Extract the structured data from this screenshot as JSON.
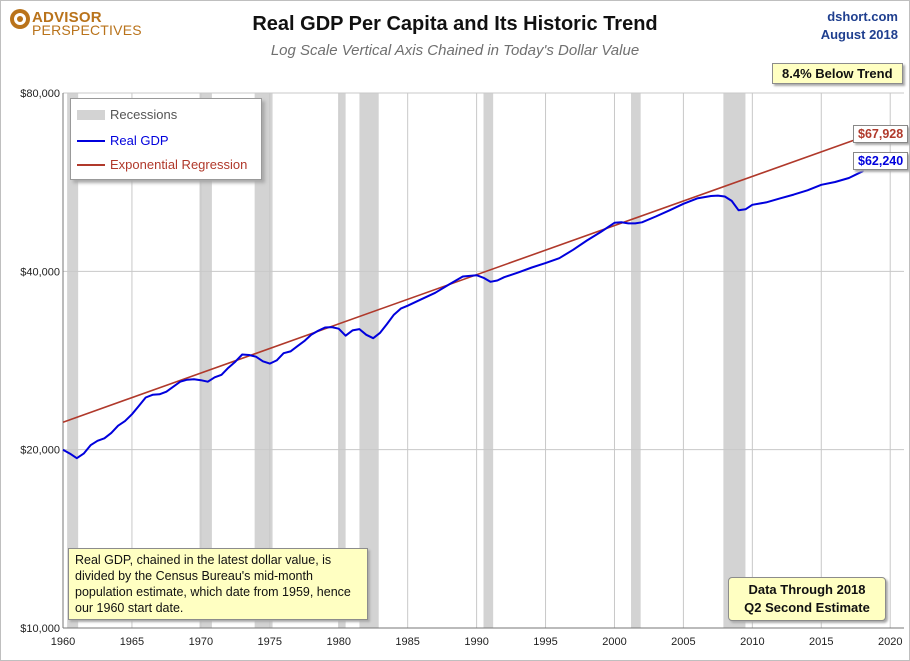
{
  "header": {
    "logo_top": "ADVISOR",
    "logo_bottom": "PERSPECTIVES",
    "title": "Real GDP Per Capita and Its Historic Trend",
    "subtitle": "Log Scale Vertical Axis Chained in Today's Dollar Value",
    "source_line1": "dshort.com",
    "source_line2": "August 2018"
  },
  "callouts": {
    "trend_gap": "8.4% Below Trend",
    "gdp_end_label": "$62,240",
    "trend_end_label": "$67,928",
    "note_text": "Real GDP, chained in the latest dollar value, is divided by the Census Bureau's mid-month population estimate, which date from 1959, hence our 1960 start date.",
    "data_through_line1": "Data Through 2018",
    "data_through_line2": "Q2 Second Estimate"
  },
  "colors": {
    "gdp": "#0000dd",
    "trend": "#b0392b",
    "recession": "#d3d3d3",
    "grid": "#c8c8c8",
    "callout_bg": "#ffffc2",
    "logo": "#b9731b",
    "source_text": "#1f3f8f"
  },
  "chart_data": {
    "type": "line",
    "y_scale": "log",
    "ylim": [
      10000,
      80000
    ],
    "xlim": [
      1960,
      2021
    ],
    "y_ticks": [
      {
        "value": 10000,
        "label": "$10,000"
      },
      {
        "value": 20000,
        "label": "$20,000"
      },
      {
        "value": 40000,
        "label": "$40,000"
      },
      {
        "value": 80000,
        "label": "$80,000"
      }
    ],
    "x_ticks": [
      1960,
      1965,
      1970,
      1975,
      1980,
      1985,
      1990,
      1995,
      2000,
      2005,
      2010,
      2015,
      2020
    ],
    "grid": true,
    "legend_position": "top-left",
    "legend": [
      "Recessions",
      "Real GDP",
      "Exponential Regression"
    ],
    "recessions": [
      [
        1960.3,
        1961.1
      ],
      [
        1969.9,
        1970.8
      ],
      [
        1973.9,
        1975.2
      ],
      [
        1980.0,
        1980.5
      ],
      [
        1981.5,
        1982.9
      ],
      [
        1990.5,
        1991.2
      ],
      [
        2001.2,
        2001.9
      ],
      [
        2007.9,
        2009.5
      ]
    ],
    "series": [
      {
        "name": "Real GDP",
        "x": [
          1960.0,
          1960.5,
          1961.0,
          1961.5,
          1962.0,
          1962.5,
          1963.0,
          1963.5,
          1964.0,
          1964.5,
          1965.0,
          1965.5,
          1966.0,
          1966.5,
          1967.0,
          1967.5,
          1968.0,
          1968.5,
          1969.0,
          1969.5,
          1970.0,
          1970.5,
          1971.0,
          1971.5,
          1972.0,
          1972.5,
          1973.0,
          1973.5,
          1974.0,
          1974.5,
          1975.0,
          1975.5,
          1976.0,
          1976.5,
          1977.0,
          1977.5,
          1978.0,
          1978.5,
          1979.0,
          1979.5,
          1980.0,
          1980.5,
          1981.0,
          1981.5,
          1982.0,
          1982.5,
          1983.0,
          1983.5,
          1984.0,
          1984.5,
          1985.0,
          1986.0,
          1987.0,
          1988.0,
          1989.0,
          1989.5,
          1990.0,
          1990.5,
          1991.0,
          1991.5,
          1992.0,
          1993.0,
          1994.0,
          1995.0,
          1996.0,
          1997.0,
          1998.0,
          1999.0,
          2000.0,
          2000.5,
          2001.0,
          2001.5,
          2002.0,
          2003.0,
          2004.0,
          2005.0,
          2006.0,
          2007.0,
          2007.5,
          2008.0,
          2008.5,
          2009.0,
          2009.5,
          2010.0,
          2011.0,
          2012.0,
          2013.0,
          2014.0,
          2015.0,
          2016.0,
          2017.0,
          2018.0,
          2018.4
        ],
        "values": [
          20000,
          19700,
          19350,
          19700,
          20350,
          20700,
          20900,
          21350,
          21950,
          22350,
          22950,
          23700,
          24500,
          24750,
          24800,
          25050,
          25550,
          26050,
          26250,
          26300,
          26200,
          26050,
          26500,
          26750,
          27500,
          28150,
          28950,
          28900,
          28700,
          28200,
          27950,
          28300,
          29100,
          29300,
          29900,
          30500,
          31250,
          31750,
          32150,
          32200,
          32000,
          31150,
          31800,
          31950,
          31250,
          30850,
          31500,
          32600,
          33800,
          34600,
          35000,
          35900,
          36800,
          38000,
          39200,
          39300,
          39400,
          39000,
          38400,
          38600,
          39100,
          39800,
          40600,
          41300,
          42100,
          43500,
          45100,
          46600,
          48300,
          48400,
          48200,
          48200,
          48400,
          49500,
          50700,
          52000,
          53100,
          53600,
          53700,
          53500,
          52600,
          50700,
          50900,
          51800,
          52300,
          53100,
          53900,
          54800,
          56000,
          56600,
          57500,
          59000,
          62240
        ]
      },
      {
        "name": "Exponential Regression",
        "x": [
          1960.0,
          2018.4
        ],
        "values": [
          22250,
          67928
        ]
      }
    ]
  }
}
